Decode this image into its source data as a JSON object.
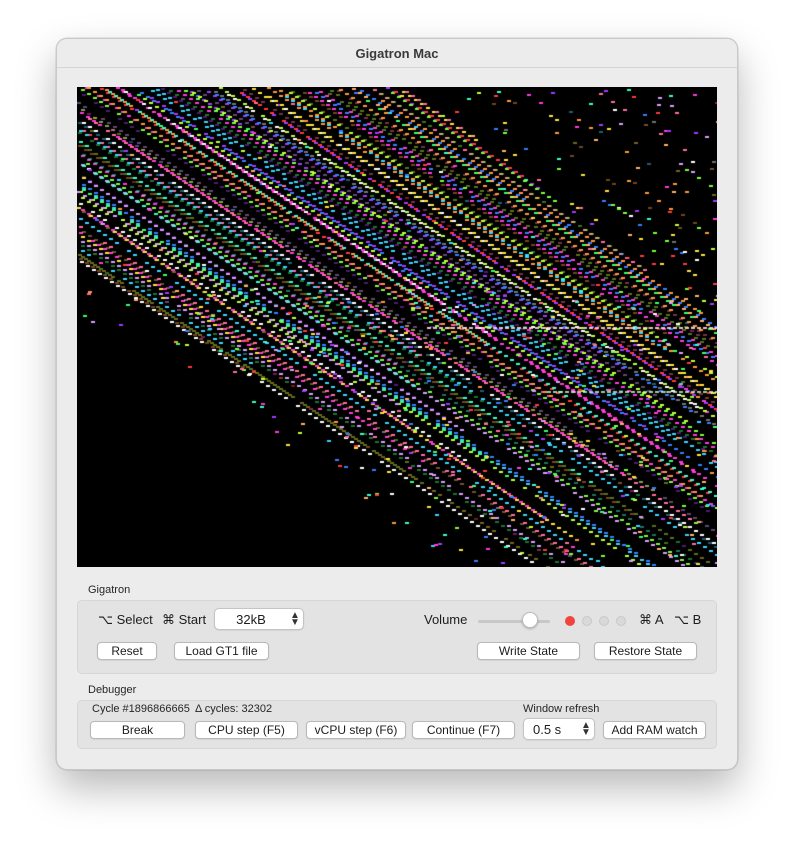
{
  "window": {
    "title": "Gigatron Mac"
  },
  "gigatron": {
    "section_title": "Gigatron",
    "select_label": "⌥ Select",
    "start_label": "⌘ Start",
    "memory": {
      "value": "32kB"
    },
    "volume_label": "Volume",
    "volume_level": 0.72,
    "leds": [
      {
        "color": "#f0453e"
      },
      {
        "color": "#d9d9d9"
      },
      {
        "color": "#d9d9d9"
      },
      {
        "color": "#d9d9d9"
      }
    ],
    "a_label": "⌘ A",
    "b_label": "⌥ B",
    "reset_label": "Reset",
    "load_label": "Load GT1 file",
    "write_label": "Write State",
    "restore_label": "Restore State"
  },
  "debugger": {
    "section_title": "Debugger",
    "cycle_text": "Cycle #1896866665",
    "delta_text": "Δ cycles: 32302",
    "refresh_label": "Window refresh",
    "refresh_value": "0.5 s",
    "break_label": "Break",
    "cpu_step_label": "CPU step (F5)",
    "vcpu_step_label": "vCPU step (F6)",
    "continue_label": "Continue (F7)",
    "ram_watch_label": "Add RAM watch"
  }
}
